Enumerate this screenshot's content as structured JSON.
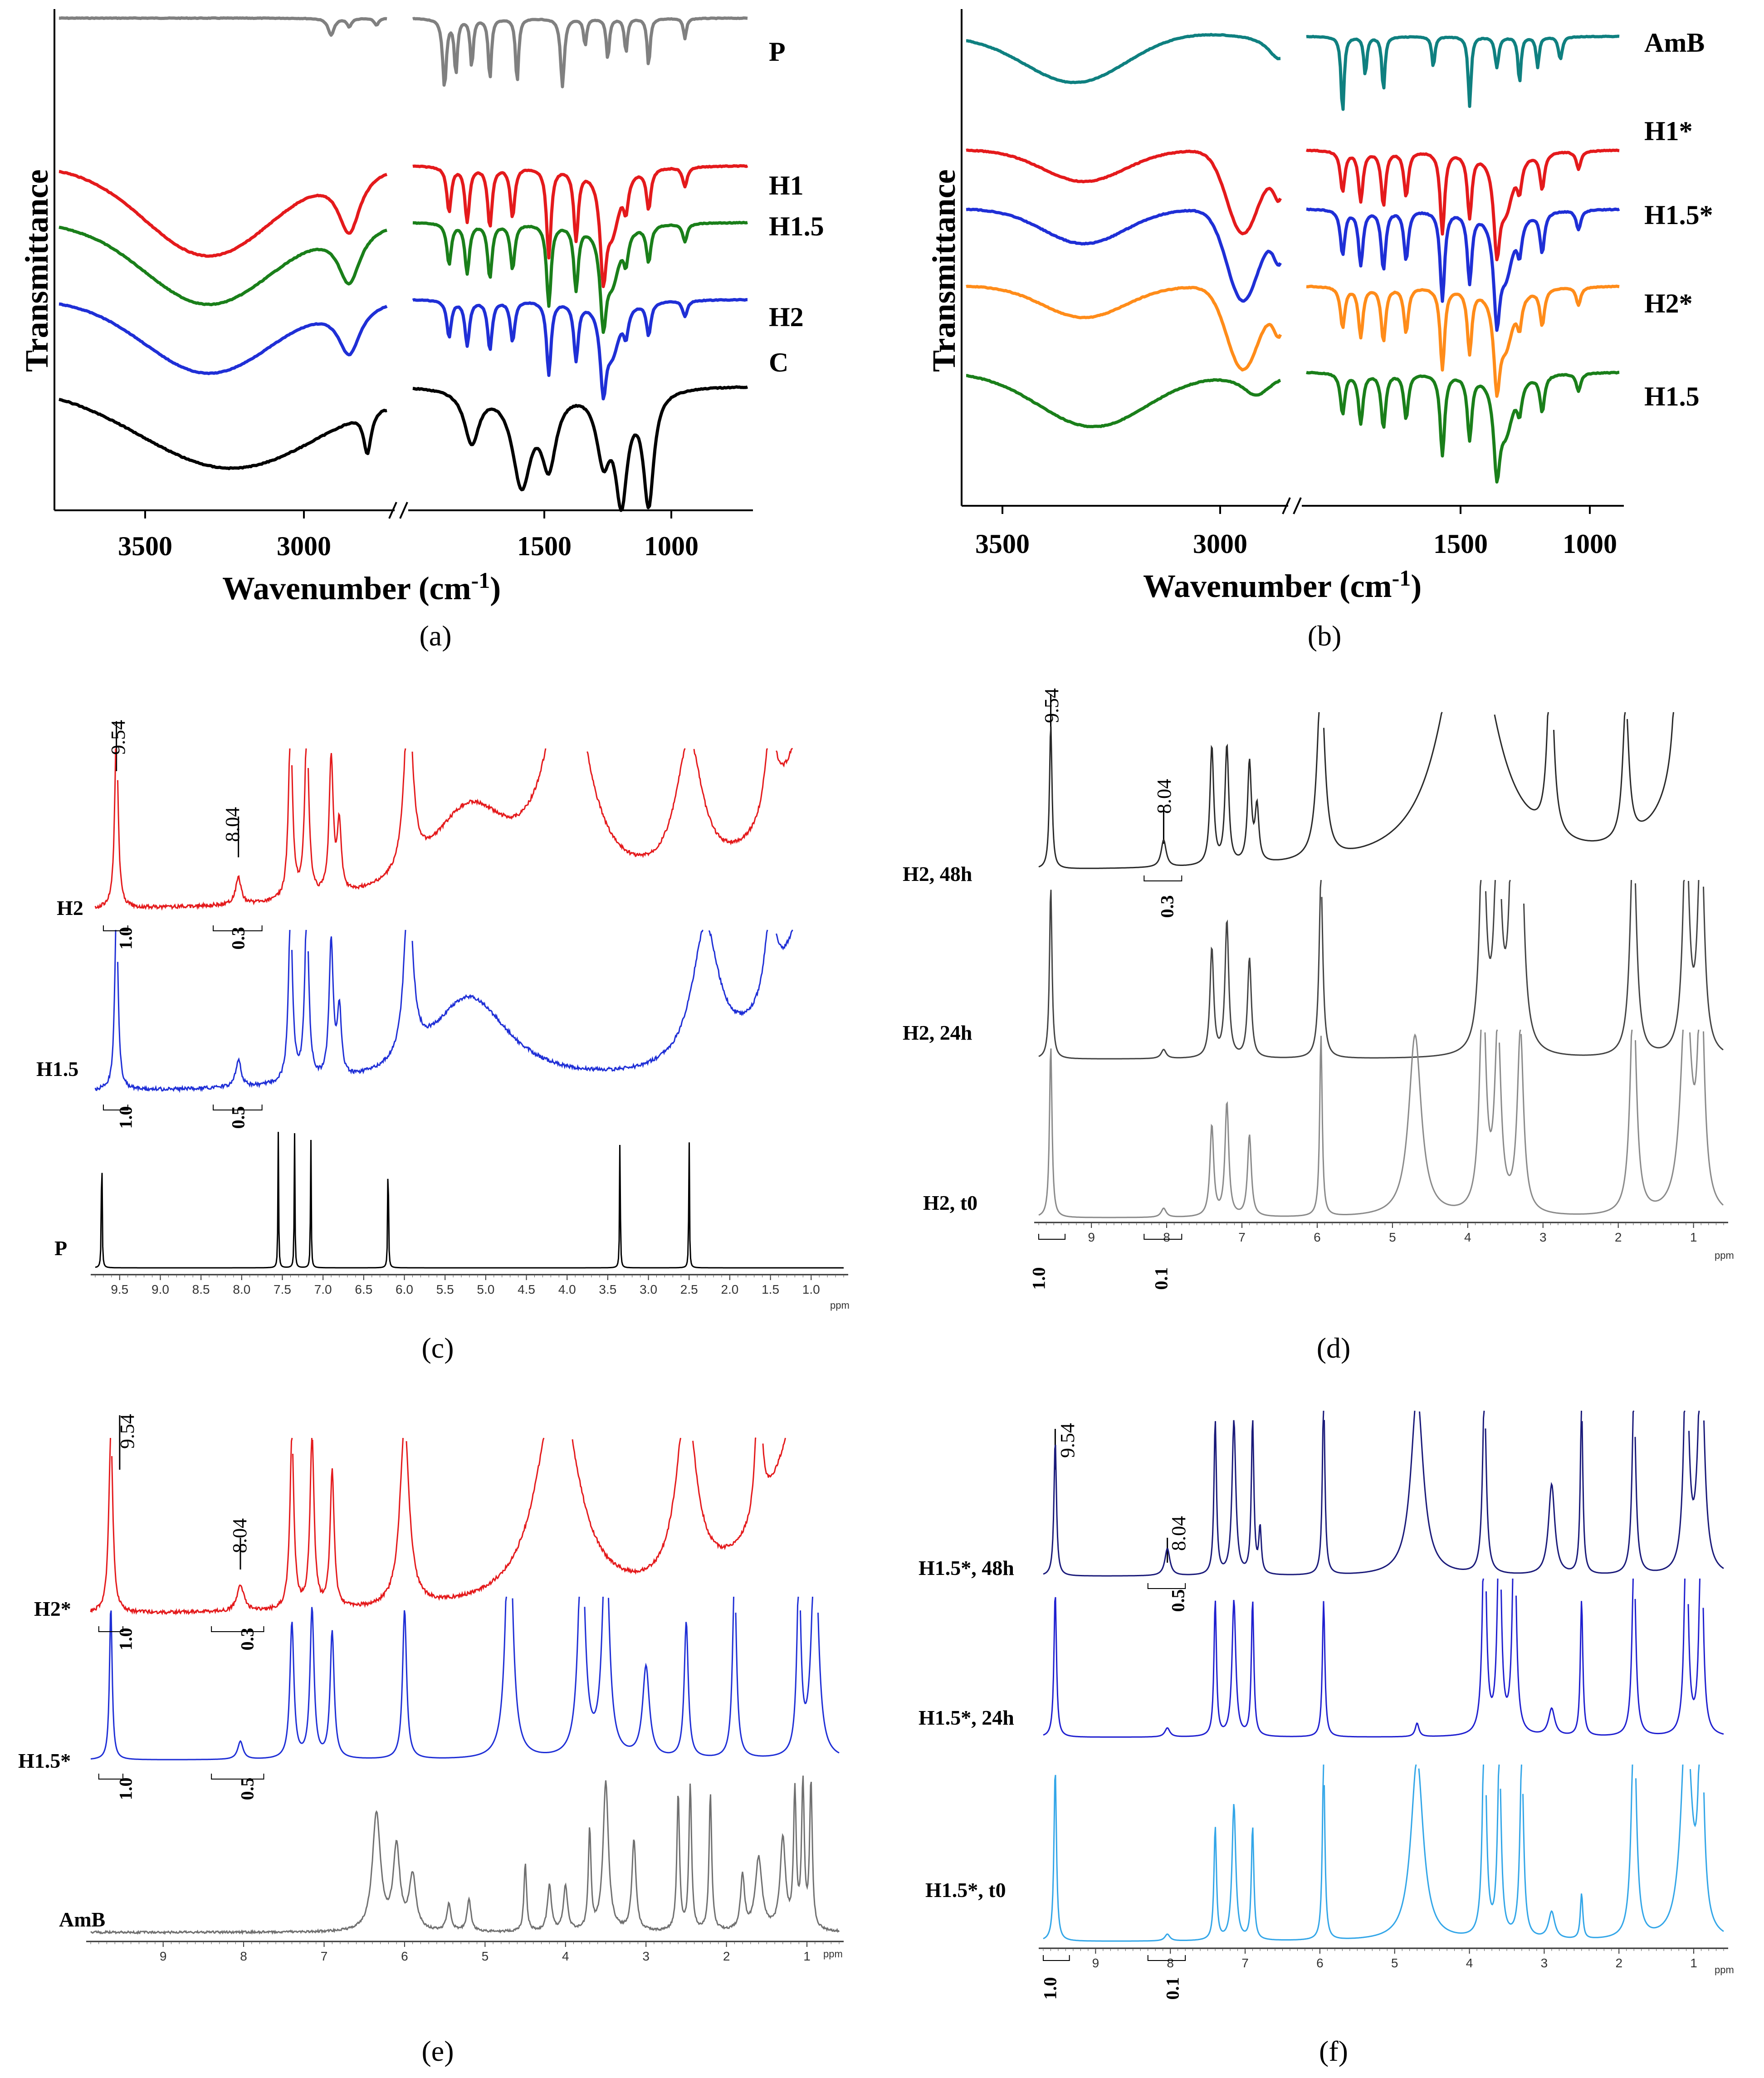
{
  "chart_data": [
    {
      "id": "a",
      "type": "line",
      "caption": "(a)",
      "xlabel": "Wavenumber (cm",
      "xlabel_exp": "-1",
      "xlabel_tail": ")",
      "ylabel": "Transmittance",
      "x_ticks": [
        "3500",
        "3000",
        "1500",
        "1000"
      ],
      "axis_break": true,
      "series": [
        {
          "name": "P",
          "color": "#808080"
        },
        {
          "name": "H1",
          "color": "#e41a1c"
        },
        {
          "name": "H1.5",
          "color": "#1a7f1a"
        },
        {
          "name": "H2",
          "color": "#1f2fd6"
        },
        {
          "name": "C",
          "color": "#000000"
        }
      ]
    },
    {
      "id": "b",
      "type": "line",
      "caption": "(b)",
      "xlabel": "Wavenumber (cm",
      "xlabel_exp": "-1",
      "xlabel_tail": ")",
      "ylabel": "Transmittance",
      "x_ticks": [
        "3500",
        "3000",
        "1500",
        "1000"
      ],
      "axis_break": true,
      "series": [
        {
          "name": "AmB",
          "color": "#0f8080"
        },
        {
          "name": "H1*",
          "color": "#e41a1c"
        },
        {
          "name": "H1.5*",
          "color": "#1f2fd6"
        },
        {
          "name": "H2*",
          "color": "#ff8c1a"
        },
        {
          "name": "H1.5",
          "color": "#1a7f1a"
        }
      ]
    },
    {
      "id": "c",
      "type": "line",
      "caption": "(c)",
      "x_ticks": [
        "9.5",
        "9.0",
        "8.5",
        "8.0",
        "7.5",
        "7.0",
        "6.5",
        "6.0",
        "5.5",
        "5.0",
        "4.5",
        "4.0",
        "3.5",
        "3.0",
        "2.5",
        "2.0",
        "1.5",
        "1.0"
      ],
      "unit": "ppm",
      "peak_labels": [
        "9.54",
        "8.04"
      ],
      "series": [
        {
          "name": "H2",
          "color": "#e41a1c",
          "integrals": [
            "1.0",
            "0.3"
          ]
        },
        {
          "name": "H1.5",
          "color": "#1f2fd6",
          "integrals": [
            "1.0",
            "0.5"
          ]
        },
        {
          "name": "P",
          "color": "#000000"
        }
      ]
    },
    {
      "id": "d",
      "type": "line",
      "caption": "(d)",
      "x_ticks": [
        "9",
        "8",
        "7",
        "6",
        "5",
        "4",
        "3",
        "2",
        "1"
      ],
      "unit": "ppm",
      "peak_labels": [
        "9.54",
        "8.04"
      ],
      "series": [
        {
          "name": "H2, 48h",
          "color": "#2a2a2a",
          "integrals": [
            "0.3"
          ]
        },
        {
          "name": "H2, 24h",
          "color": "#444444"
        },
        {
          "name": "H2, t0",
          "color": "#8a8a8a",
          "integrals": [
            "1.0",
            "0.1"
          ]
        }
      ]
    },
    {
      "id": "e",
      "type": "line",
      "caption": "(e)",
      "x_ticks": [
        "9",
        "8",
        "7",
        "6",
        "5",
        "4",
        "3",
        "2",
        "1"
      ],
      "unit": "ppm",
      "peak_labels": [
        "9.54",
        "8.04"
      ],
      "series": [
        {
          "name": "H2*",
          "color": "#e41a1c",
          "integrals": [
            "1.0",
            "0.3"
          ]
        },
        {
          "name": "H1.5*",
          "color": "#1f2fd6",
          "integrals": [
            "1.0",
            "0.5"
          ]
        },
        {
          "name": "AmB",
          "color": "#707070"
        }
      ]
    },
    {
      "id": "f",
      "type": "line",
      "caption": "(f)",
      "x_ticks": [
        "9",
        "8",
        "7",
        "6",
        "5",
        "4",
        "3",
        "2",
        "1"
      ],
      "unit": "ppm",
      "peak_labels": [
        "9.54",
        "8.04"
      ],
      "series": [
        {
          "name": "H1.5*, 48h",
          "color": "#1a1a7a",
          "integrals": [
            "0.5"
          ]
        },
        {
          "name": "H1.5*, 24h",
          "color": "#2020d0"
        },
        {
          "name": "H1.5*, t0",
          "color": "#33a6e8",
          "integrals": [
            "1.0",
            "0.1"
          ]
        }
      ]
    }
  ]
}
